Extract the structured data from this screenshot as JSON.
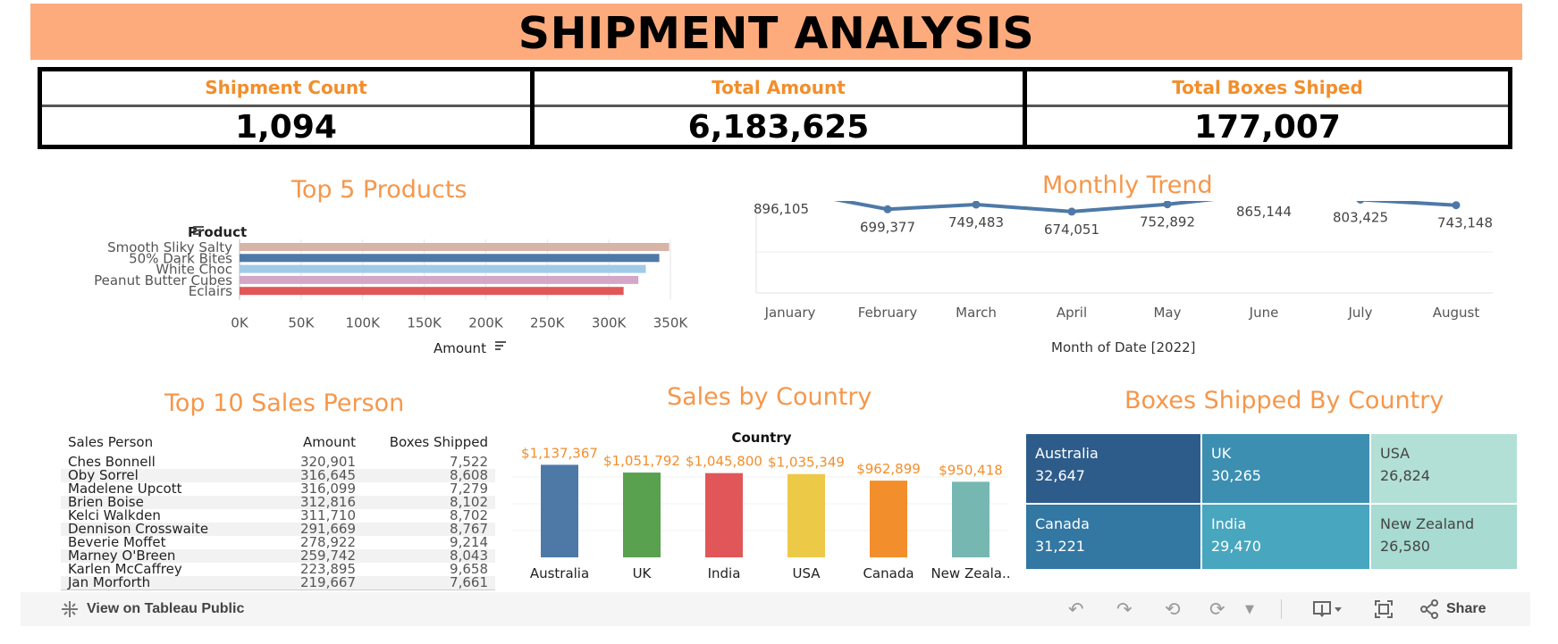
{
  "header": {
    "title": "SHIPMENT ANALYSIS"
  },
  "kpis": [
    {
      "label": "Shipment Count",
      "value": "1,094"
    },
    {
      "label": "Total Amount",
      "value": "6,183,625"
    },
    {
      "label": "Total Boxes Shiped",
      "value": "177,007"
    }
  ],
  "colors": {
    "accent": "#f28e2b",
    "banner": "#fdab7d",
    "title": "#f5974b"
  },
  "chart_data": [
    {
      "type": "bar",
      "orientation": "horizontal",
      "title": "Top 5 Products",
      "ylabel": "Product",
      "xlabel": "Amount",
      "categories": [
        "Smooth Sliky Salty",
        "50% Dark Bites",
        "White Choc",
        "Peanut Butter Cubes",
        "Eclairs"
      ],
      "values": [
        349000,
        341000,
        330000,
        324000,
        312000
      ],
      "colors": [
        "#d7b5a6",
        "#4e79a7",
        "#a0cbe8",
        "#d4a6c8",
        "#e15759"
      ],
      "xlim": [
        0,
        350000
      ],
      "xticks": [
        "0K",
        "50K",
        "100K",
        "150K",
        "200K",
        "250K",
        "300K",
        "350K"
      ]
    },
    {
      "type": "line",
      "title": "Monthly Trend",
      "xlabel": "Month of Date [2022]",
      "categories": [
        "January",
        "February",
        "March",
        "April",
        "May",
        "June",
        "July",
        "August"
      ],
      "values": [
        896105,
        699377,
        749483,
        674051,
        752892,
        865144,
        803425,
        743148
      ],
      "labels": [
        "896,105",
        "699,377",
        "749,483",
        "674,051",
        "752,892",
        "865,144",
        "803,425",
        "743,148"
      ],
      "ylim": [
        0,
        1000000
      ],
      "color": "#4e79a7"
    },
    {
      "type": "table",
      "title": "Top 10 Sales Person",
      "columns": [
        "Sales Person",
        "Amount",
        "Boxes Shipped"
      ],
      "rows": [
        [
          "Ches Bonnell",
          "320,901",
          "7,522"
        ],
        [
          "Oby Sorrel",
          "316,645",
          "8,608"
        ],
        [
          "Madelene Upcott",
          "316,099",
          "7,279"
        ],
        [
          "Brien Boise",
          "312,816",
          "8,102"
        ],
        [
          "Kelci Walkden",
          "311,710",
          "8,702"
        ],
        [
          "Dennison Crosswaite",
          "291,669",
          "8,767"
        ],
        [
          "Beverie Moffet",
          "278,922",
          "9,214"
        ],
        [
          "Marney O'Breen",
          "259,742",
          "8,043"
        ],
        [
          "Karlen McCaffrey",
          "223,895",
          "9,658"
        ],
        [
          "Jan Morforth",
          "219,667",
          "7,661"
        ]
      ]
    },
    {
      "type": "bar",
      "title": "Sales by Country",
      "subtitle": "Country",
      "categories": [
        "Australia",
        "UK",
        "India",
        "USA",
        "Canada",
        "New Zeala.."
      ],
      "values": [
        1137367,
        1051792,
        1045800,
        1035349,
        962899,
        950418
      ],
      "labels": [
        "$1,137,367",
        "$1,051,792",
        "$1,045,800",
        "$1,035,349",
        "$962,899",
        "$950,418"
      ],
      "colors": [
        "#4e79a7",
        "#59a14f",
        "#e15759",
        "#edc948",
        "#f28e2b",
        "#76b7b2"
      ],
      "ylim": [
        0,
        1200000
      ]
    },
    {
      "type": "heatmap",
      "title": "Boxes Shipped By Country",
      "cells": [
        {
          "name": "Australia",
          "value": "32,647",
          "color": "#2e5c8a"
        },
        {
          "name": "UK",
          "value": "30,265",
          "color": "#3c8fb0"
        },
        {
          "name": "USA",
          "value": "26,824",
          "color": "#b3e0d6"
        },
        {
          "name": "Canada",
          "value": "31,221",
          "color": "#3377a3"
        },
        {
          "name": "India",
          "value": "29,470",
          "color": "#49a6bf"
        },
        {
          "name": "New Zealand",
          "value": "26,580",
          "color": "#a8dbd1"
        }
      ]
    }
  ],
  "toolbar": {
    "view_link": "View on Tableau Public",
    "share_label": "Share"
  }
}
